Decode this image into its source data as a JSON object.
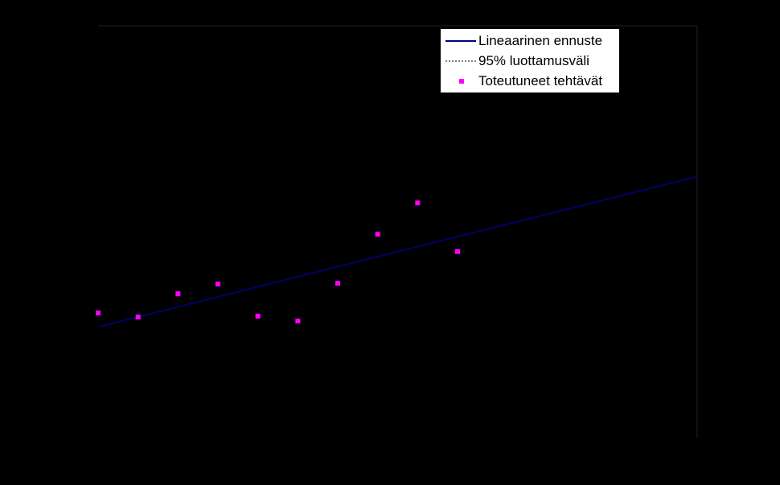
{
  "chart_data": {
    "type": "scatter",
    "series": [
      {
        "name": "Lineaarinen ennuste",
        "kind": "line",
        "color": "#000080",
        "x": [
          1,
          16
        ],
        "y": [
          0.0,
          3.75
        ]
      },
      {
        "name": "95% luottamusväli",
        "kind": "dashed-line",
        "color": "#000000",
        "x": [],
        "y": []
      },
      {
        "name": "Toteutuneet tehtävät",
        "kind": "points",
        "color": "#ff00ff",
        "x": [
          1,
          2,
          3,
          4,
          5,
          6,
          7,
          8,
          9,
          10
        ],
        "y": [
          0.35,
          0.25,
          0.83,
          1.07,
          0.27,
          0.15,
          1.09,
          2.31,
          3.09,
          1.88
        ]
      }
    ],
    "xlim": [
      1,
      16
    ],
    "ylim": [
      -2.75,
      7.5
    ],
    "grid": false,
    "legend": "top-right",
    "background": "#000000",
    "axis_color": "#000000"
  }
}
